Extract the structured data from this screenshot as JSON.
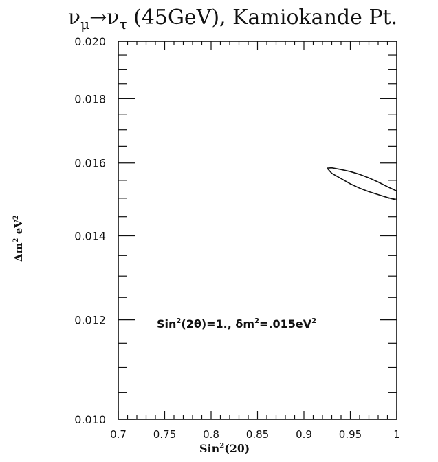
{
  "chart_data": {
    "type": "line",
    "title": "νμ→ντ (45GeV), Kamiokande Pt.",
    "title_parts": {
      "nu": "ν",
      "mu": "μ",
      "arrow": "→",
      "tau": "τ",
      "rest": " (45GeV), Kamiokande Pt."
    },
    "xlabel": "Sin²(2θ)",
    "xlabel_parts": {
      "base": "Sin",
      "sup": "2",
      "tail": "(2θ)"
    },
    "ylabel": "Δm² eV²",
    "ylabel_parts": {
      "a": "Δm",
      "sup1": "2",
      "b": " eV",
      "sup2": "2"
    },
    "xlim": [
      0.7,
      1.0
    ],
    "ylim": [
      0.01,
      0.02
    ],
    "y_scale": "log",
    "x_ticks": [
      "0.7",
      "0.75",
      "0.8",
      "0.85",
      "0.9",
      "0.95",
      "1"
    ],
    "y_ticks": [
      "0.010",
      "0.012",
      "0.014",
      "0.016",
      "0.018",
      "0.020"
    ],
    "annotation": "Sin²(2θ)=1., δm²=.015eV²",
    "annotation_parts": {
      "a": "Sin",
      "sup1": "2",
      "b": "(2θ)=1., δm",
      "sup2": "2",
      "c": "=.015eV",
      "sup3": "2"
    },
    "series": [
      {
        "values": [
          [
            0.925,
            0.01585
          ],
          [
            0.93,
            0.0157
          ],
          [
            0.94,
            0.01555
          ],
          [
            0.95,
            0.0154
          ],
          [
            0.96,
            0.01528
          ],
          [
            0.97,
            0.01518
          ],
          [
            0.98,
            0.0151
          ],
          [
            0.99,
            0.01502
          ],
          [
            1.0,
            0.01495
          ],
          [
            1.0,
            0.0152
          ],
          [
            0.99,
            0.01532
          ],
          [
            0.98,
            0.01545
          ],
          [
            0.97,
            0.01557
          ],
          [
            0.96,
            0.01567
          ],
          [
            0.95,
            0.01575
          ],
          [
            0.94,
            0.01581
          ],
          [
            0.93,
            0.01586
          ],
          [
            0.925,
            0.01585
          ]
        ]
      }
    ],
    "grid": false
  }
}
